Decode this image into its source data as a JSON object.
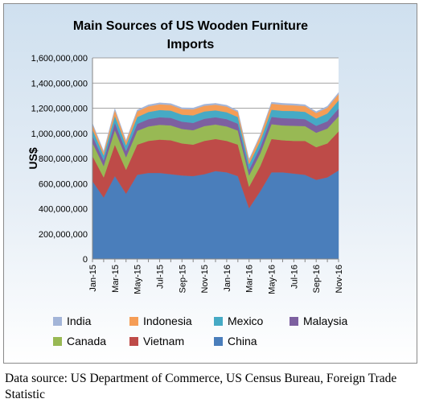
{
  "chart_data": {
    "type": "area",
    "stacked": true,
    "title_lines": [
      "Main Sources of US Wooden Furniture",
      "Imports"
    ],
    "ylabel": "US$",
    "xlabel": "",
    "ylim": [
      0,
      1600000000
    ],
    "yticks": [
      0,
      200000000,
      400000000,
      600000000,
      800000000,
      1000000000,
      1200000000,
      1400000000,
      1600000000
    ],
    "ytick_labels": [
      "0",
      "200,000,000",
      "400,000,000",
      "600,000,000",
      "800,000,000",
      "1,000,000,000",
      "1,200,000,000",
      "1,400,000,000",
      "1,600,000,000"
    ],
    "grid": true,
    "legend_position": "bottom",
    "x": [
      "Jan-15",
      "Feb-15",
      "Mar-15",
      "Apr-15",
      "May-15",
      "Jun-15",
      "Jul-15",
      "Aug-15",
      "Sep-15",
      "Oct-15",
      "Nov-15",
      "Dec-15",
      "Jan-16",
      "Feb-16",
      "Mar-16",
      "Apr-16",
      "May-16",
      "Jun-16",
      "Jul-16",
      "Aug-16",
      "Sep-16",
      "Oct-16",
      "Nov-16"
    ],
    "x_tick_labels": [
      "Jan-15",
      "Mar-15",
      "May-15",
      "Jul-15",
      "Sep-15",
      "Nov-15",
      "Jan-16",
      "Mar-16",
      "May-16",
      "Jul-16",
      "Sep-16",
      "Nov-16"
    ],
    "series": [
      {
        "name": "China",
        "color": "#4a7ebb",
        "values": [
          620000000,
          490000000,
          660000000,
          520000000,
          670000000,
          685000000,
          685000000,
          675000000,
          665000000,
          660000000,
          675000000,
          700000000,
          690000000,
          660000000,
          405000000,
          540000000,
          690000000,
          690000000,
          680000000,
          670000000,
          630000000,
          650000000,
          705000000
        ]
      },
      {
        "name": "Vietnam",
        "color": "#be4b48",
        "values": [
          200000000,
          160000000,
          250000000,
          190000000,
          240000000,
          255000000,
          265000000,
          270000000,
          255000000,
          250000000,
          265000000,
          255000000,
          250000000,
          250000000,
          170000000,
          200000000,
          265000000,
          255000000,
          260000000,
          270000000,
          260000000,
          270000000,
          310000000
        ]
      },
      {
        "name": "Canada",
        "color": "#98b954",
        "values": [
          105000000,
          90000000,
          115000000,
          100000000,
          110000000,
          115000000,
          118000000,
          118000000,
          115000000,
          115000000,
          118000000,
          115000000,
          115000000,
          112000000,
          90000000,
          100000000,
          118000000,
          118000000,
          120000000,
          118000000,
          115000000,
          118000000,
          120000000
        ]
      },
      {
        "name": "Malaysia",
        "color": "#7d60a0",
        "values": [
          55000000,
          45000000,
          60000000,
          50000000,
          55000000,
          58000000,
          60000000,
          60000000,
          58000000,
          58000000,
          58000000,
          58000000,
          58000000,
          55000000,
          45000000,
          50000000,
          58000000,
          58000000,
          58000000,
          55000000,
          55000000,
          58000000,
          62000000
        ]
      },
      {
        "name": "Mexico",
        "color": "#46aac5",
        "values": [
          50000000,
          40000000,
          55000000,
          45000000,
          55000000,
          57000000,
          58000000,
          58000000,
          56000000,
          60000000,
          58000000,
          55000000,
          55000000,
          53000000,
          45000000,
          50000000,
          57000000,
          58000000,
          60000000,
          58000000,
          58000000,
          62000000,
          65000000
        ]
      },
      {
        "name": "Indonesia",
        "color": "#f59d56",
        "values": [
          40000000,
          25000000,
          45000000,
          30000000,
          45000000,
          45000000,
          45000000,
          45000000,
          44000000,
          47000000,
          45000000,
          45000000,
          45000000,
          40000000,
          30000000,
          40000000,
          48000000,
          48000000,
          45000000,
          46000000,
          44000000,
          46000000,
          50000000
        ]
      },
      {
        "name": "India",
        "color": "#a3b5d8",
        "values": [
          10000000,
          8000000,
          12000000,
          9000000,
          11000000,
          12000000,
          12000000,
          11000000,
          11000000,
          12000000,
          12000000,
          11000000,
          11000000,
          10000000,
          8000000,
          10000000,
          12000000,
          12000000,
          12000000,
          11000000,
          11000000,
          12000000,
          13000000
        ]
      }
    ],
    "legend_rows": [
      [
        "India",
        "Indonesia",
        "Mexico",
        "Malaysia"
      ],
      [
        "Canada",
        "Vietnam",
        "China"
      ]
    ]
  },
  "caption": "Data source: US Department of Commerce, US Census Bureau, Foreign Trade Statistic"
}
